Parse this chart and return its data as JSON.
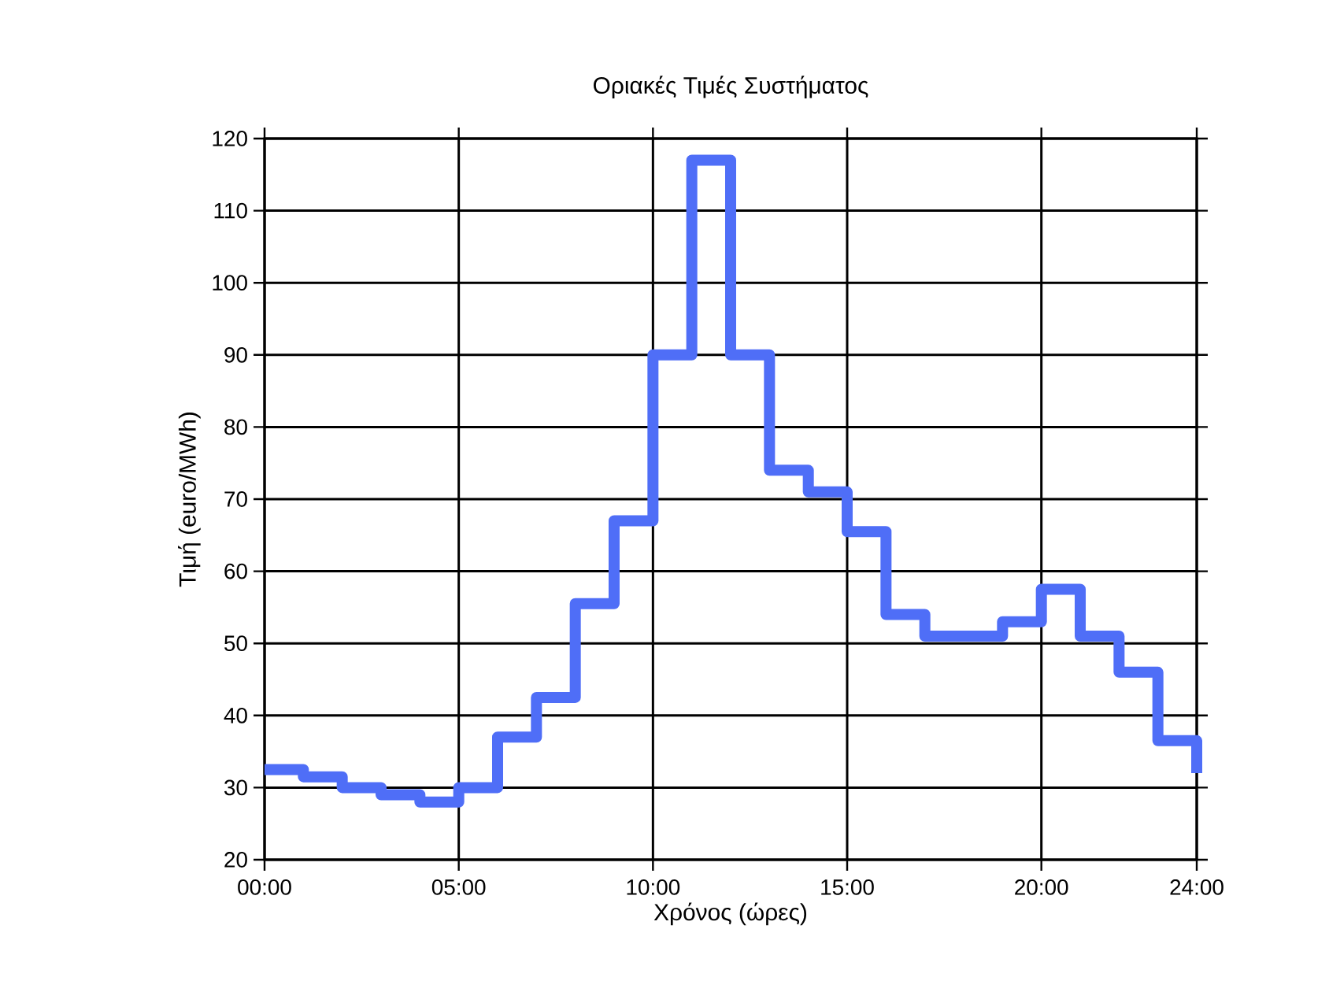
{
  "chart_data": {
    "type": "step",
    "title": "Οριακές Τιμές Συστήματος",
    "xlabel": "Χρόνος (ώρες)",
    "ylabel": "Τιμή (euro/MWh)",
    "x": [
      0,
      1,
      2,
      3,
      4,
      5,
      6,
      7,
      8,
      9,
      10,
      11,
      12,
      13,
      14,
      15,
      16,
      17,
      18,
      19,
      20,
      21,
      22,
      23,
      24
    ],
    "series": [
      {
        "color": "#4f6ef7",
        "values": [
          32.5,
          31.5,
          30,
          29,
          28,
          30,
          37,
          42.5,
          55.5,
          67,
          90,
          117,
          90,
          74,
          71,
          65.5,
          54,
          51,
          51,
          53,
          57.5,
          51,
          46,
          36.5,
          32
        ]
      }
    ],
    "xlim": [
      0,
      24
    ],
    "xticks": [
      {
        "value": 0,
        "label": "00:00"
      },
      {
        "value": 5,
        "label": "05:00"
      },
      {
        "value": 10,
        "label": "10:00"
      },
      {
        "value": 15,
        "label": "15:00"
      },
      {
        "value": 20,
        "label": "20:00"
      },
      {
        "value": 24,
        "label": "24:00"
      }
    ],
    "ylim": [
      20,
      120
    ],
    "yticks": [
      20,
      30,
      40,
      50,
      60,
      70,
      80,
      90,
      100,
      110,
      120
    ],
    "grid": true,
    "marker": "none",
    "line_style": "solid"
  }
}
